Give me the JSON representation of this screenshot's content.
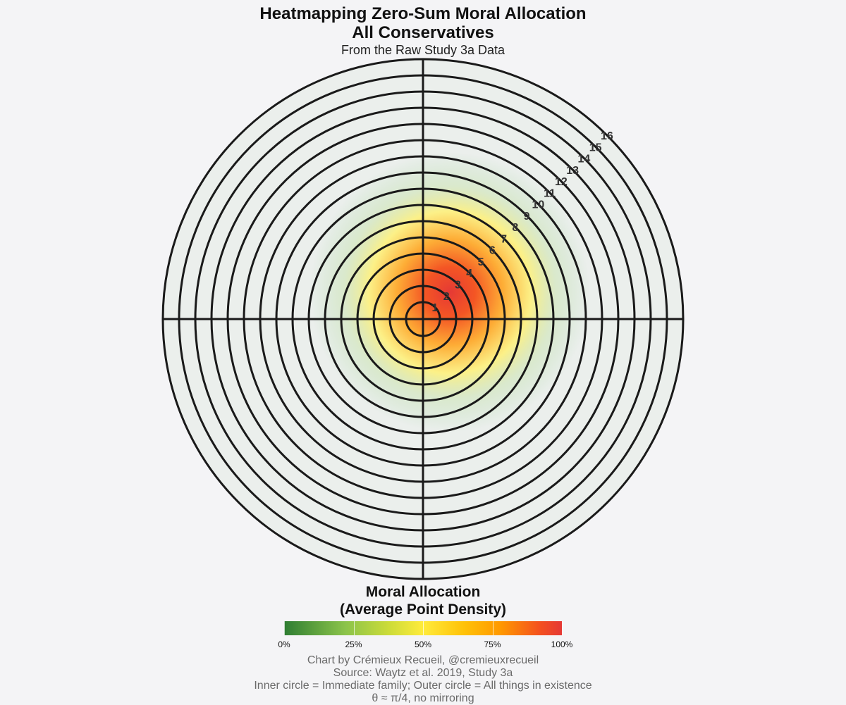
{
  "title": {
    "line1": "Heatmapping Zero-Sum Moral Allocation",
    "line2": "All Conservatives",
    "subtitle": "From the Raw Study 3a Data"
  },
  "chart_data": {
    "type": "heatmap",
    "subtype": "polar",
    "ring_labels": [
      "1",
      "2",
      "3",
      "4",
      "5",
      "6",
      "7",
      "8",
      "9",
      "10",
      "11",
      "12",
      "13",
      "14",
      "15",
      "16"
    ],
    "ring_count": 16,
    "label_angle_note": "θ ≈ π/4",
    "density_peak": {
      "angle_deg": 45,
      "ring": 2.3,
      "spread_rings": 3.2,
      "max_density_pct": 100
    },
    "colorbar": {
      "title_line1": "Moral Allocation",
      "title_line2": "(Average Point Density)",
      "min": 0,
      "max": 100,
      "ticks": [
        0,
        25,
        50,
        75,
        100
      ],
      "tick_labels": [
        "0%",
        "25%",
        "50%",
        "75%",
        "100%"
      ],
      "colors": [
        "#2e7d32",
        "#8bc34a",
        "#cddc39",
        "#ffeb3b",
        "#ffc107",
        "#ff9800",
        "#f4511e",
        "#e53935"
      ]
    }
  },
  "footer": {
    "line1": "Chart by Crémieux Recueil, @cremieuxrecueil",
    "line2": "Source: Waytz et al. 2019, Study 3a",
    "line3": "Inner circle = Immediate family; Outer circle = All things in existence",
    "line4": "θ ≈ π/4, no mirroring"
  },
  "colors": {
    "background": "#f4f4f6",
    "grid": "#1a1a1a",
    "ring_label": "#333333"
  }
}
